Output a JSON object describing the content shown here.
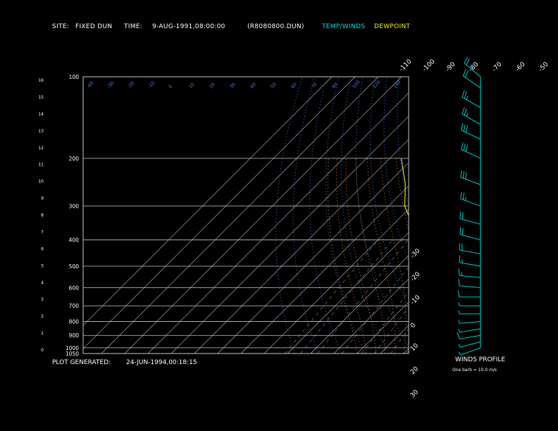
{
  "header": {
    "site_label": "SITE:",
    "site_value": "FIXED DUN",
    "time_label": "TIME:",
    "time_value": "9-AUG-1991,08:00:00",
    "file_name": "(R8080800.DUN)",
    "legend_temp": "TEMP/WINDS",
    "legend_dew": "DEWPOINT"
  },
  "footer": {
    "generated_label": "PLOT GENERATED:",
    "generated_value": "24-JUN-1994,00:18:15",
    "winds_title": "WINDS PROFILE",
    "barb_note": "One barb = 10.0 m/s"
  },
  "colors": {
    "background": "#000000",
    "isobar": "#c8c8c8",
    "isotherm": "#c8c8c8",
    "dry_adiabat": "#3a6ad8",
    "moist_adiabat": "#d86a3a",
    "mixing_ratio": "#6a6a6a",
    "temperature": "#00e0e0",
    "dewpoint": "#f0f020",
    "text": "#ffffff",
    "blue_label": "#4a7ae8",
    "orange_label": "#e07a3a"
  },
  "chart_data": {
    "type": "line",
    "title": "",
    "pressure_levels": [
      100,
      200,
      300,
      400,
      500,
      600,
      700,
      800,
      900,
      1000,
      1050
    ],
    "height_ticks": [
      "16",
      "15",
      "14",
      "13",
      "12",
      "11",
      "10",
      "9",
      "8",
      "7",
      "6",
      "5",
      "4",
      "3",
      "2",
      "1",
      "0"
    ],
    "isotherm_labels_top": [
      "-110",
      "-100",
      "-90",
      "-80",
      "-70",
      "-60",
      "-50",
      "-40"
    ],
    "isotherm_labels_right": [
      "-30",
      "-20",
      "-10",
      "0",
      "10",
      "20",
      "30"
    ],
    "dry_adiabat_labels": [
      "-40",
      "-30",
      "-20",
      "-10",
      "0",
      "10",
      "20",
      "30",
      "40",
      "50",
      "60",
      "70",
      "80",
      "100",
      "120",
      "140"
    ],
    "series": [
      {
        "name": "TEMP/WINDS",
        "pressure": [
          1040,
          1020,
          1000,
          950,
          900,
          850,
          800,
          750,
          700,
          650,
          600,
          550,
          500,
          450,
          400,
          350,
          300,
          250,
          200,
          180,
          160,
          140,
          120,
          110,
          100
        ],
        "temperature": [
          21,
          22,
          20,
          16,
          12,
          10,
          8,
          5,
          1,
          -2,
          -5,
          -9,
          -12,
          -17,
          -23,
          -30,
          -38,
          -46,
          -56,
          -61,
          -65,
          -65,
          -60,
          -56,
          -54
        ]
      },
      {
        "name": "DEWPOINT",
        "pressure": [
          1040,
          1020,
          1000,
          950,
          900,
          850,
          800,
          750,
          700,
          650,
          600,
          550,
          500,
          450,
          400,
          350,
          300,
          250,
          200
        ],
        "dewpoint": [
          18,
          17,
          16,
          10,
          5,
          2,
          0,
          -4,
          -6,
          -12,
          -15,
          -20,
          -25,
          -30,
          -33,
          -42,
          -53,
          -62,
          -75
        ]
      }
    ],
    "winds": {
      "note": "One barb = 10.0 m/s",
      "pressure": [
        1000,
        950,
        900,
        850,
        800,
        750,
        700,
        650,
        600,
        550,
        500,
        450,
        400,
        350,
        300,
        250,
        200,
        170,
        150,
        130,
        110,
        100
      ],
      "speed_ms": [
        5,
        8,
        10,
        8,
        6,
        7,
        9,
        12,
        14,
        16,
        18,
        20,
        22,
        24,
        28,
        30,
        32,
        30,
        28,
        26,
        24,
        20
      ],
      "direction_deg": [
        250,
        255,
        260,
        260,
        265,
        270,
        270,
        270,
        275,
        275,
        280,
        280,
        285,
        285,
        290,
        290,
        295,
        295,
        300,
        300,
        305,
        310
      ]
    }
  }
}
